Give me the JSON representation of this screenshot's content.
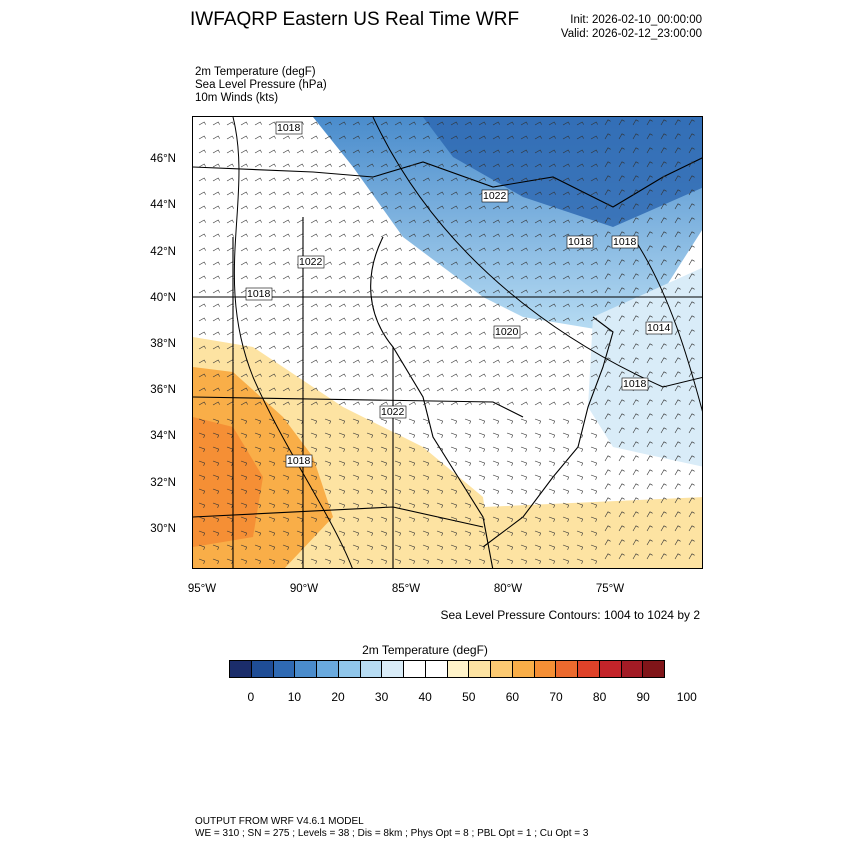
{
  "header": {
    "title": "IWFAQRP Eastern US Real Time WRF",
    "init": "Init: 2026-02-10_00:00:00",
    "valid": "Valid: 2026-02-12_23:00:00"
  },
  "fields": [
    "2m Temperature   (degF)",
    "Sea Level Pressure   (hPa)",
    "10m Winds   (kts)"
  ],
  "map": {
    "lat_labels": [
      "46°N",
      "44°N",
      "42°N",
      "40°N",
      "38°N",
      "36°N",
      "34°N",
      "32°N",
      "30°N"
    ],
    "lon_labels": [
      "95°W",
      "90°W",
      "85°W",
      "80°W",
      "75°W"
    ],
    "isobar_labels": [
      "1018",
      "1022",
      "1022",
      "1018",
      "1018",
      "1018",
      "1020",
      "1014",
      "1018",
      "1022",
      "1018"
    ],
    "contour_note": "Sea Level Pressure Contours: 1004 to 1024 by 2"
  },
  "colorbar": {
    "title": "2m Temperature  (degF)",
    "colors": [
      "#1b2d6b",
      "#1f4d96",
      "#2f6ab3",
      "#4a8ccc",
      "#6aaade",
      "#90c6ea",
      "#b7dcf3",
      "#d9ecf8",
      "#ffffff",
      "#ffffff",
      "#fff3c9",
      "#fde3a2",
      "#fcca72",
      "#f9ae48",
      "#f58f35",
      "#ec6a2e",
      "#df4229",
      "#c4242a",
      "#a21b25",
      "#801519"
    ],
    "labels": [
      "0",
      "10",
      "20",
      "30",
      "40",
      "50",
      "60",
      "70",
      "80",
      "90",
      "100"
    ]
  },
  "footer": {
    "line1": "OUTPUT FROM WRF V4.6.1 MODEL",
    "line2": "WE = 310 ; SN = 275 ; Levels = 38 ; Dis = 8km ; Phys Opt = 8 ; PBL Opt = 1 ; Cu Opt = 3"
  }
}
